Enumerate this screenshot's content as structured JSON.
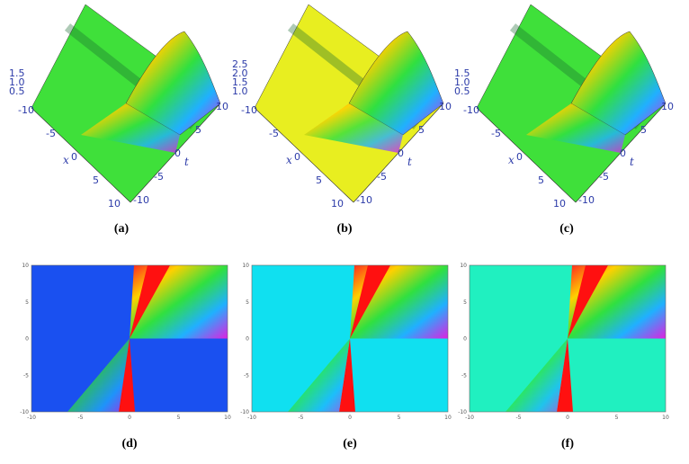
{
  "figure": {
    "surfaces": [
      {
        "label": "(a)",
        "zticks": [
          "1.5",
          "1.0",
          "0.5"
        ],
        "xticks": [
          "-10",
          "-5",
          "0",
          "5",
          "10"
        ],
        "tticks": [
          "10",
          "5",
          "0",
          "-5",
          "-10"
        ],
        "xlabel": "x",
        "tlabel": "t"
      },
      {
        "label": "(b)",
        "zticks": [
          "2.5",
          "2.0",
          "1.5",
          "1.0"
        ],
        "xticks": [
          "-10",
          "-5",
          "0",
          "5",
          "10"
        ],
        "tticks": [
          "10",
          "5",
          "0",
          "-5",
          "-10"
        ],
        "xlabel": "x",
        "tlabel": "t"
      },
      {
        "label": "(c)",
        "zticks": [
          "1.5",
          "1.0",
          "0.5"
        ],
        "xticks": [
          "-10",
          "-5",
          "0",
          "5",
          "10"
        ],
        "tticks": [
          "10",
          "5",
          "0",
          "-5",
          "-10"
        ],
        "xlabel": "x",
        "tlabel": "t"
      }
    ],
    "densities": [
      {
        "label": "(d)",
        "xticks": [
          "-10",
          "-5",
          "0",
          "5",
          "10"
        ],
        "yticks": [
          "10",
          "5",
          "0",
          "-5",
          "-10"
        ]
      },
      {
        "label": "(e)",
        "xticks": [
          "-10",
          "-5",
          "0",
          "5",
          "10"
        ],
        "yticks": [
          "10",
          "5",
          "0",
          "-5",
          "-10"
        ]
      },
      {
        "label": "(f)",
        "xticks": [
          "-10",
          "-5",
          "0",
          "5",
          "10"
        ],
        "yticks": [
          "10",
          "5",
          "0",
          "-5",
          "-10"
        ]
      }
    ]
  }
}
